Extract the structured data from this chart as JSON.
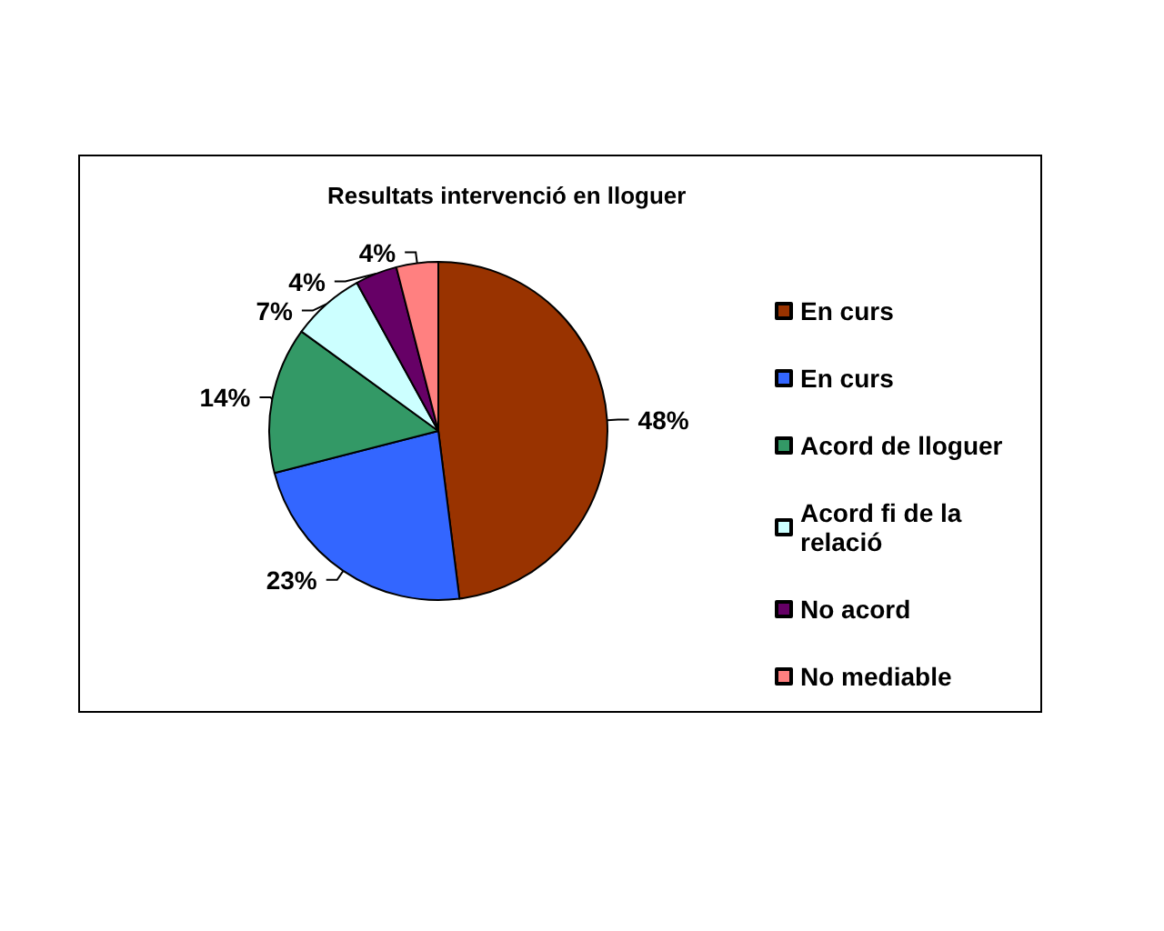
{
  "chart_data": {
    "type": "pie",
    "title": "Resultats intervenció en lloguer",
    "categories": [
      "En curs",
      "En curs",
      "Acord de lloguer",
      "Acord fi de la relació",
      "No acord",
      "No mediable"
    ],
    "values": [
      48,
      23,
      14,
      7,
      4,
      4
    ],
    "colors": [
      "#993300",
      "#3366ff",
      "#339966",
      "#ccffff",
      "#660066",
      "#ff8080"
    ],
    "value_labels": [
      "48%",
      "23%",
      "14%",
      "7%",
      "4%",
      "4%"
    ],
    "legend": "right"
  }
}
